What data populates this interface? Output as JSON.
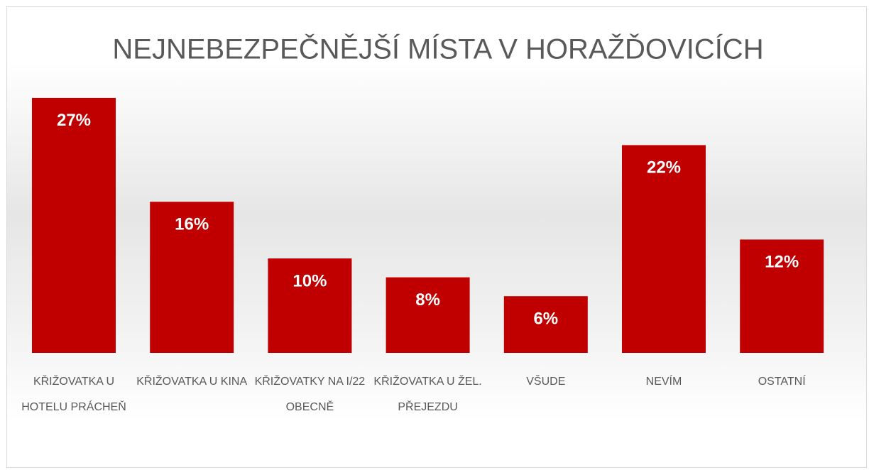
{
  "chart_data": {
    "type": "bar",
    "title": "NEJNEBEZPEČNĚJŠÍ MÍSTA V HORAŽĎOVICÍCH",
    "categories": [
      "KŘIŽOVATKA U HOTELU PRÁCHEŇ",
      "KŘIŽOVATKA U KINA",
      "KŘIŽOVATKY NA I/22 OBECNĚ",
      "KŘIŽOVATKA U ŽEL. PŘEJEZDU",
      "VŠUDE",
      "NEVÍM",
      "OSTATNÍ"
    ],
    "values": [
      27,
      16,
      10,
      8,
      6,
      22,
      12
    ],
    "value_labels": [
      "27%",
      "16%",
      "10%",
      "8%",
      "6%",
      "22%",
      "12%"
    ],
    "color": "#c00000"
  }
}
